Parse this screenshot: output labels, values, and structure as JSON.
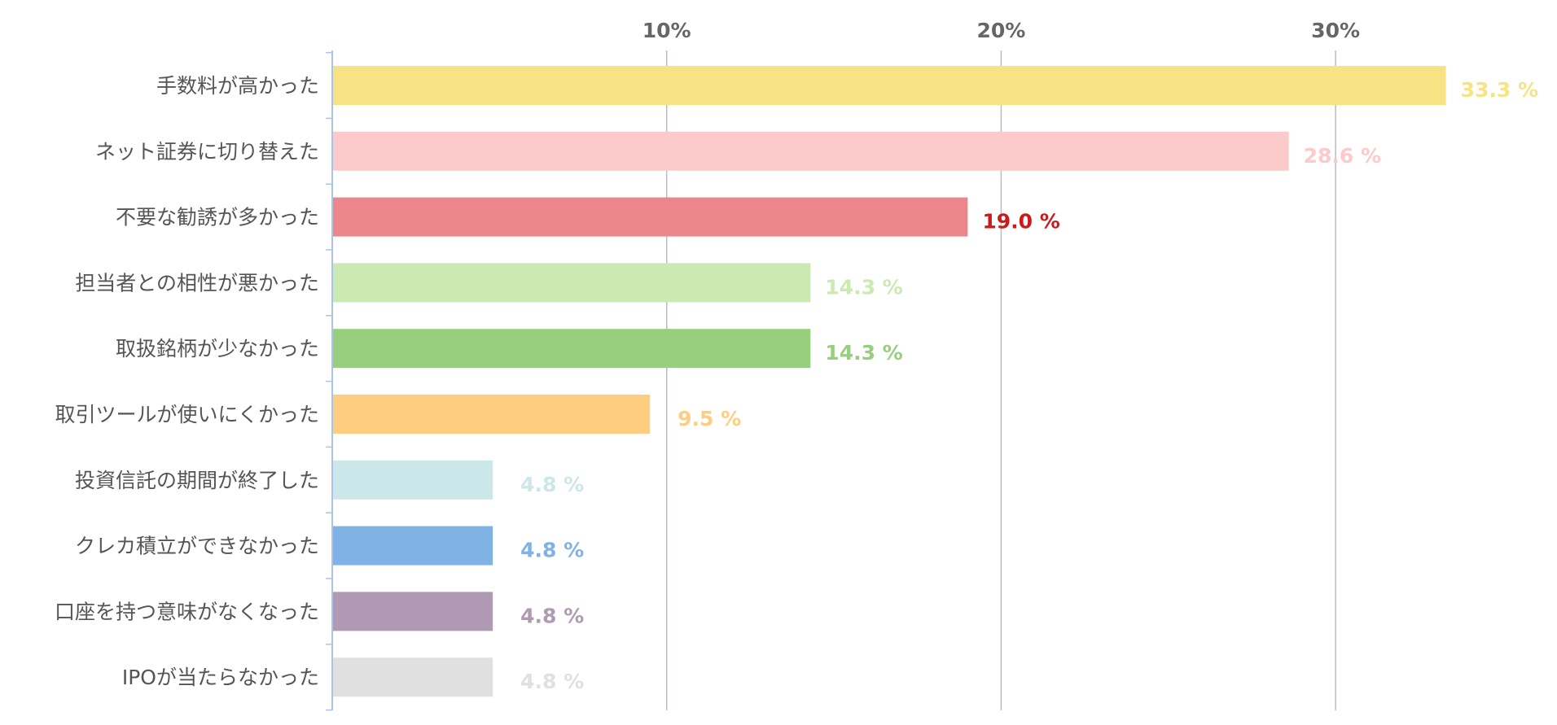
{
  "chart_data": {
    "type": "bar",
    "orientation": "horizontal",
    "categories": [
      "手数料が高かった",
      "ネット証券に切り替えた",
      "不要な勧誘が多かった",
      "担当者との相性が悪かった",
      "取扱銘柄が少なかった",
      "取引ツールが使いにくかった",
      "投資信託の期間が終了した",
      "クレカ積立ができなかった",
      "口座を持つ意味がなくなった",
      "IPOが当たらなかった"
    ],
    "values": [
      33.3,
      28.6,
      19.0,
      14.3,
      14.3,
      9.5,
      4.8,
      4.8,
      4.8,
      4.8
    ],
    "value_labels": [
      "33.3 %",
      "28.6 %",
      "19.0 %",
      "14.3 %",
      "14.3 %",
      "9.5 %",
      "4.8 %",
      "4.8 %",
      "4.8 %",
      "4.8 %"
    ],
    "bar_colors": [
      "#f7e384",
      "#fdcacb",
      "#ed858c",
      "#cce8b3",
      "#98cf7f",
      "#fecd80",
      "#cce7e9",
      "#80b2e6",
      "#b099b3",
      "#e0e0e0"
    ],
    "label_colors": [
      "#f7e384",
      "#fdcacb",
      "#cc1a1a",
      "#cce8b3",
      "#98cf7f",
      "#fecd80",
      "#cce7e9",
      "#80b2e6",
      "#b099b3",
      "#e0e0e0"
    ],
    "x_ticks": [
      10,
      20,
      30
    ],
    "x_tick_labels": [
      "10%",
      "20%",
      "30%"
    ],
    "xlim": [
      0,
      36
    ],
    "tick_position": "top",
    "grid": true,
    "title": "",
    "xlabel": "",
    "ylabel": ""
  }
}
